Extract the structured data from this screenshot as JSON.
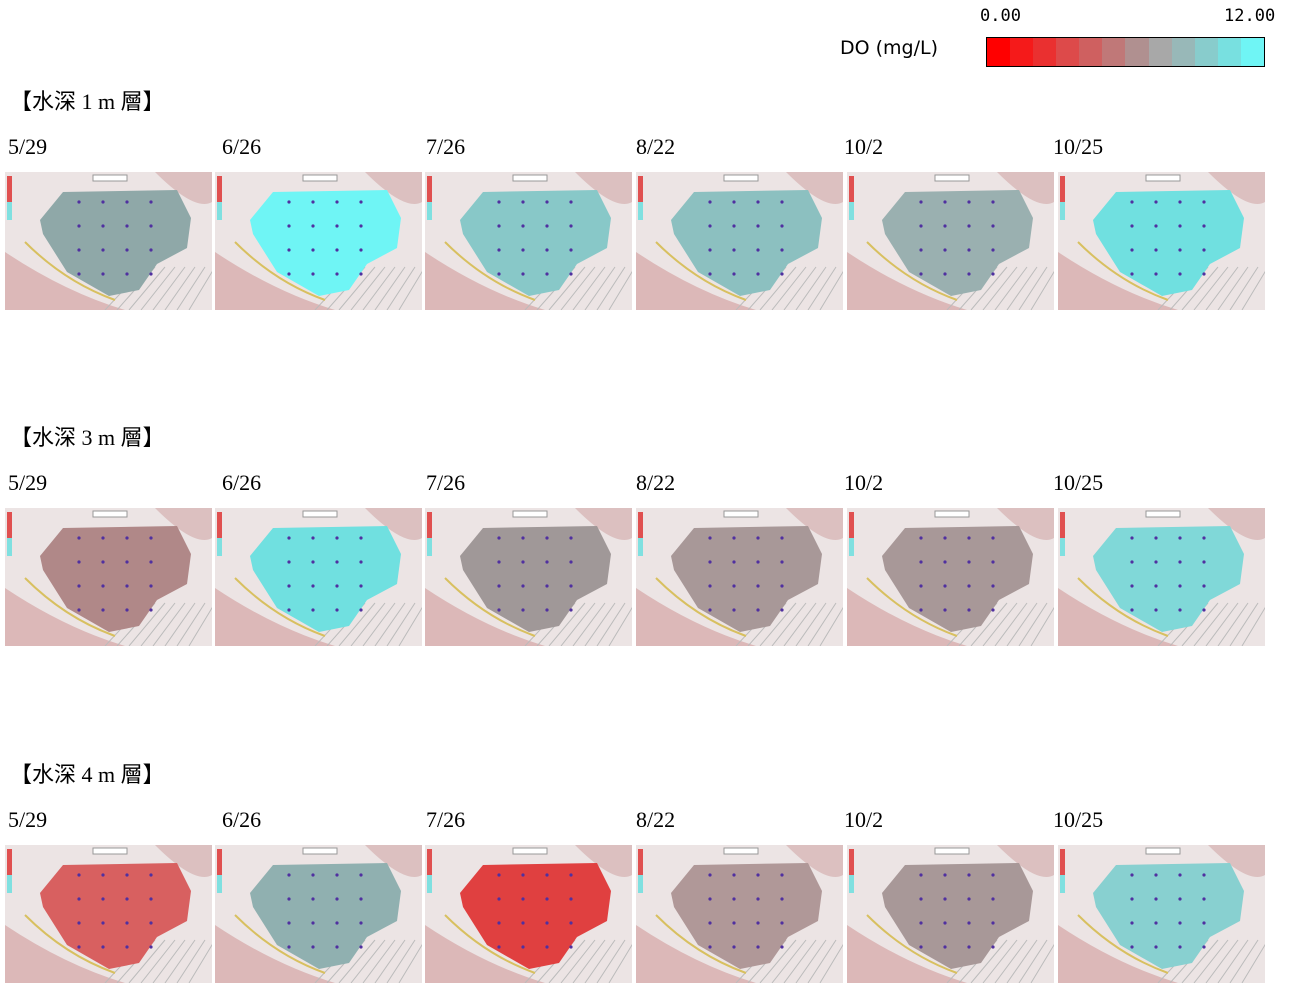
{
  "legend": {
    "title": "DO (mg/L)",
    "min": "0.00",
    "max": "12.00",
    "colors": [
      "#ff0000",
      "#f51a1a",
      "#ea3030",
      "#dd4a4a",
      "#cf6060",
      "#c07878",
      "#b09090",
      "#a8a8a8",
      "#98b8b8",
      "#88cccc",
      "#78e0e0",
      "#6ff5f5"
    ]
  },
  "sections": [
    {
      "title": "【水深 1 m 層】",
      "panels": [
        {
          "date": "5/29",
          "color": "#8fa8a8"
        },
        {
          "date": "6/26",
          "color": "#6ff5f5"
        },
        {
          "date": "7/26",
          "color": "#88c8c8"
        },
        {
          "date": "8/22",
          "color": "#8cc0c0"
        },
        {
          "date": "10/2",
          "color": "#9ab0b0"
        },
        {
          "date": "10/25",
          "color": "#70e0e0"
        }
      ]
    },
    {
      "title": "【水深 3 m 層】",
      "panels": [
        {
          "date": "5/29",
          "color": "#b08888"
        },
        {
          "date": "6/26",
          "color": "#70e0e0"
        },
        {
          "date": "7/26",
          "color": "#a09898"
        },
        {
          "date": "8/22",
          "color": "#a89898"
        },
        {
          "date": "10/2",
          "color": "#a89898"
        },
        {
          "date": "10/25",
          "color": "#80d8d8"
        }
      ]
    },
    {
      "title": "【水深 4 m 層】",
      "panels": [
        {
          "date": "5/29",
          "color": "#d86060"
        },
        {
          "date": "6/26",
          "color": "#90b0b0"
        },
        {
          "date": "7/26",
          "color": "#e04040"
        },
        {
          "date": "8/22",
          "color": "#b09898"
        },
        {
          "date": "10/2",
          "color": "#a89898"
        },
        {
          "date": "10/25",
          "color": "#88d0d0"
        }
      ]
    }
  ]
}
